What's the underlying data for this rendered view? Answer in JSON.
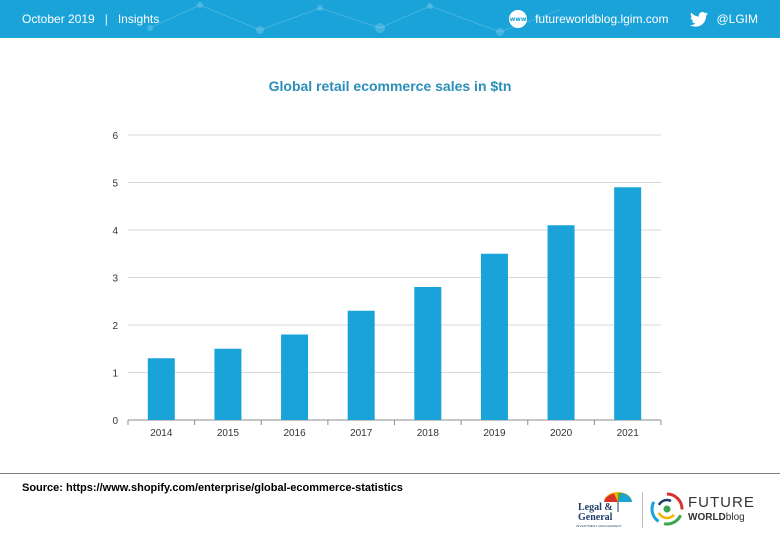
{
  "header": {
    "date": "October 2019",
    "separator": "|",
    "section": "Insights",
    "website": "futureworldblog.lgim.com",
    "www_icon_label": "www",
    "twitter_handle": "@LGIM",
    "bar_color": "#1aa3d8"
  },
  "chart_data": {
    "type": "bar",
    "title": "Global retail ecommerce sales in $tn",
    "categories": [
      "2014",
      "2015",
      "2016",
      "2017",
      "2018",
      "2019",
      "2020",
      "2021"
    ],
    "values": [
      1.3,
      1.5,
      1.8,
      2.3,
      2.8,
      3.5,
      4.1,
      4.9
    ],
    "ylim": [
      0,
      6
    ],
    "yticks": [
      0,
      1,
      2,
      3,
      4,
      5,
      6
    ],
    "xlabel": "",
    "ylabel": "",
    "grid": true,
    "bar_color": "#1aa3d8"
  },
  "footer": {
    "source": "Source: https://www.shopify.com/enterprise/global-ecommerce-statistics",
    "lg_logo_line1": "Legal &",
    "lg_logo_line2": "General",
    "lg_logo_sub": "INVESTMENT MANAGEMENT",
    "fw_logo_line1": "FUTURE",
    "fw_logo_world": "WORLD",
    "fw_logo_blog": "blog"
  }
}
